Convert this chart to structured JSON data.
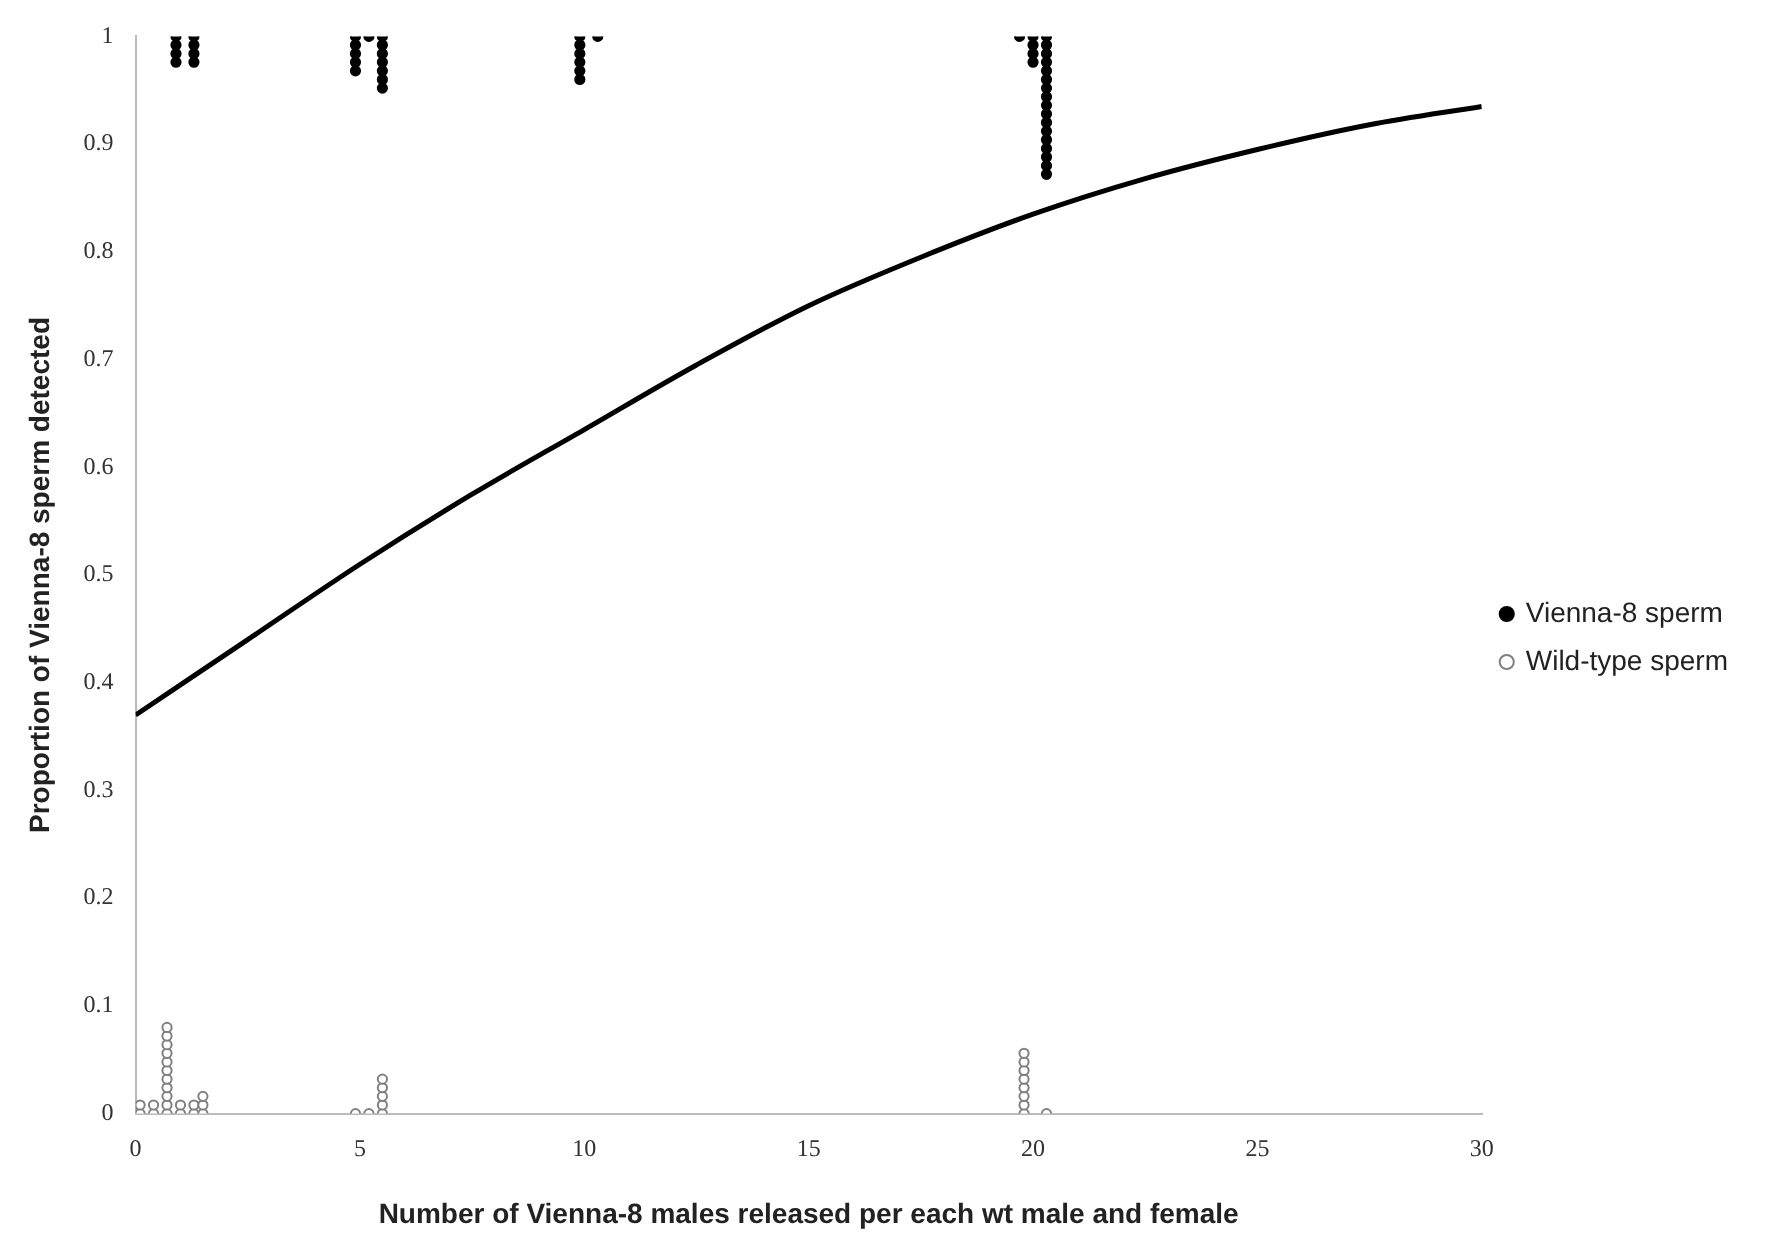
{
  "chart_data": {
    "type": "scatter",
    "xlabel": "Number of Vienna-8 males released per each wt male and female",
    "ylabel": "Proportion of Vienna-8 sperm detected",
    "xlim": [
      0,
      30
    ],
    "xticks": [
      0,
      5,
      10,
      15,
      20,
      25,
      30
    ],
    "ylim": [
      0,
      1
    ],
    "yticks": [
      0,
      0.1,
      0.2,
      0.3,
      0.4,
      0.5,
      0.6,
      0.7,
      0.8,
      0.9,
      1
    ],
    "grid": false,
    "legend": "right",
    "series": [
      {
        "name": "Vienna-8 sperm",
        "color": "#000000",
        "marker": "circle",
        "x": [
          0.9,
          0.9,
          0.9,
          0.9,
          1.3,
          1.3,
          1.3,
          1.3,
          4.9,
          4.9,
          4.9,
          4.9,
          4.9,
          5.2,
          5.5,
          5.5,
          5.5,
          5.5,
          5.5,
          5.5,
          5.5,
          9.9,
          9.9,
          9.9,
          9.9,
          9.9,
          9.9,
          10.3,
          19.7,
          20.0,
          20.0,
          20.0,
          20.0,
          20.3,
          20.3,
          20.3,
          20.3,
          20.3,
          20.3,
          20.3,
          20.3,
          20.3,
          20.3,
          20.3,
          20.3,
          20.3,
          20.3,
          20.3,
          20.3,
          20.3
        ],
        "values": [
          1,
          0.992,
          0.984,
          0.976,
          1,
          0.992,
          0.984,
          0.976,
          1,
          0.992,
          0.984,
          0.976,
          0.968,
          1,
          1,
          0.992,
          0.984,
          0.976,
          0.968,
          0.96,
          0.952,
          1,
          0.992,
          0.984,
          0.976,
          0.968,
          0.96,
          1,
          1,
          1,
          0.992,
          0.984,
          0.976,
          1,
          0.992,
          0.984,
          0.976,
          0.968,
          0.96,
          0.952,
          0.944,
          0.936,
          0.928,
          0.92,
          0.912,
          0.904,
          0.896,
          0.888,
          0.88,
          0.872
        ]
      },
      {
        "name": "Wild-type sperm",
        "color": "#808080",
        "marker": "circle",
        "x": [
          0.1,
          0.1,
          0.4,
          0.4,
          0.7,
          0.7,
          0.7,
          0.7,
          0.7,
          0.7,
          0.7,
          0.7,
          0.7,
          0.7,
          0.7,
          1.0,
          1.0,
          1.3,
          1.3,
          1.5,
          1.5,
          1.5,
          4.9,
          5.2,
          5.5,
          5.5,
          5.5,
          5.5,
          5.5,
          19.8,
          19.8,
          19.8,
          19.8,
          19.8,
          19.8,
          19.8,
          19.8,
          20.3
        ],
        "values": [
          0,
          0.008,
          0,
          0.008,
          0,
          0.008,
          0.016,
          0.024,
          0.032,
          0.04,
          0.048,
          0.056,
          0.064,
          0.072,
          0.08,
          0,
          0.008,
          0,
          0.008,
          0,
          0.008,
          0.016,
          0,
          0,
          0,
          0.008,
          0.016,
          0.024,
          0.032,
          0,
          0.008,
          0.016,
          0.024,
          0.032,
          0.04,
          0.048,
          0.056,
          0
        ]
      },
      {
        "type": "line",
        "color": "#000000",
        "marker": "none",
        "x": [
          0,
          2.5,
          5,
          7.5,
          10,
          12.5,
          15,
          17.5,
          20,
          22.5,
          25,
          27.5,
          30
        ],
        "values": [
          0.37,
          0.44,
          0.51,
          0.575,
          0.635,
          0.695,
          0.75,
          0.795,
          0.835,
          0.868,
          0.895,
          0.918,
          0.935
        ]
      }
    ]
  }
}
